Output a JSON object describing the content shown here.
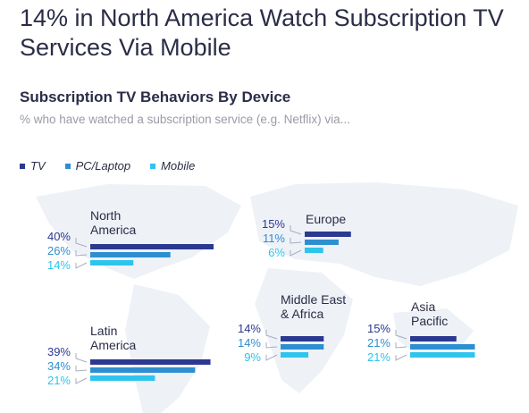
{
  "title": "14% in North America Watch Subscription TV Services Via Mobile",
  "subtitle": "Subscription TV Behaviors By Device",
  "caption": "% who have watched a subscription service (e.g. Netflix) via...",
  "colors": {
    "TV": "#2b3990",
    "PC/Laptop": "#2e8fd0",
    "Mobile": "#2ec4ee"
  },
  "chart_data": {
    "type": "bar",
    "orientation": "horizontal",
    "series_names": [
      "TV",
      "PC/Laptop",
      "Mobile"
    ],
    "legend_position": "top-left",
    "groups": [
      {
        "name_lines": [
          "North",
          "America"
        ],
        "values": [
          40,
          26,
          14
        ],
        "value_labels": [
          "40%",
          "26%",
          "14%"
        ]
      },
      {
        "name_lines": [
          "Europe"
        ],
        "values": [
          15,
          11,
          6
        ],
        "value_labels": [
          "15%",
          "11%",
          "6%"
        ]
      },
      {
        "name_lines": [
          "Latin",
          "America"
        ],
        "values": [
          39,
          34,
          21
        ],
        "value_labels": [
          "39%",
          "34%",
          "21%"
        ]
      },
      {
        "name_lines": [
          "Middle East",
          "& Africa"
        ],
        "values": [
          14,
          14,
          9
        ],
        "value_labels": [
          "14%",
          "14%",
          "9%"
        ]
      },
      {
        "name_lines": [
          "Asia",
          "Pacific"
        ],
        "values": [
          15,
          21,
          21
        ],
        "value_labels": [
          "15%",
          "21%",
          "21%"
        ]
      }
    ]
  }
}
